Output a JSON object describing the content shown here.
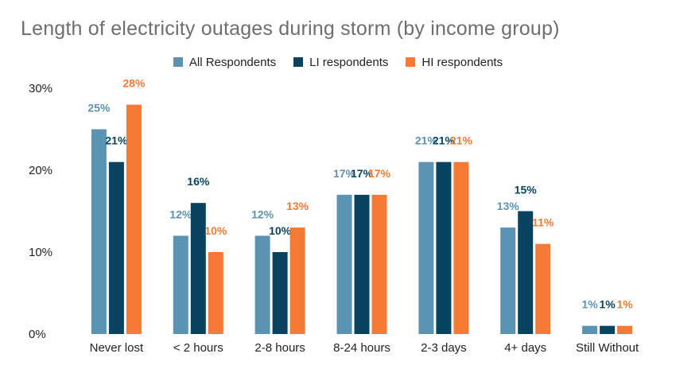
{
  "chart_data": {
    "type": "bar",
    "title": "Length of electricity outages during storm (by income group)",
    "categories": [
      "Never lost",
      "< 2 hours",
      "2-8 hours",
      "8-24 hours",
      "2-3 days",
      "4+ days",
      "Still Without"
    ],
    "series": [
      {
        "name": "All Respondents",
        "color": "#5b93b3",
        "values": [
          25,
          12,
          12,
          17,
          21,
          13,
          1
        ],
        "labels": [
          "25%",
          "12%",
          "12%",
          "17%",
          "21%",
          "13%",
          "1%"
        ]
      },
      {
        "name": "LI respondents",
        "color": "#08435f",
        "values": [
          21,
          16,
          10,
          17,
          21,
          15,
          1
        ],
        "labels": [
          "21%",
          "16%",
          "10%",
          "17%",
          "21%",
          "15%",
          "1%"
        ]
      },
      {
        "name": "HI respondents",
        "color": "#f47a36",
        "values": [
          28,
          10,
          13,
          17,
          21,
          11,
          1
        ],
        "labels": [
          "28%",
          "10%",
          "13%",
          "17%",
          "21%",
          "11%",
          "1%"
        ]
      }
    ],
    "yticks": [
      "0%",
      "10%",
      "20%",
      "30%"
    ],
    "ylim": [
      0,
      30
    ],
    "grid": false,
    "legend_position": "top"
  }
}
